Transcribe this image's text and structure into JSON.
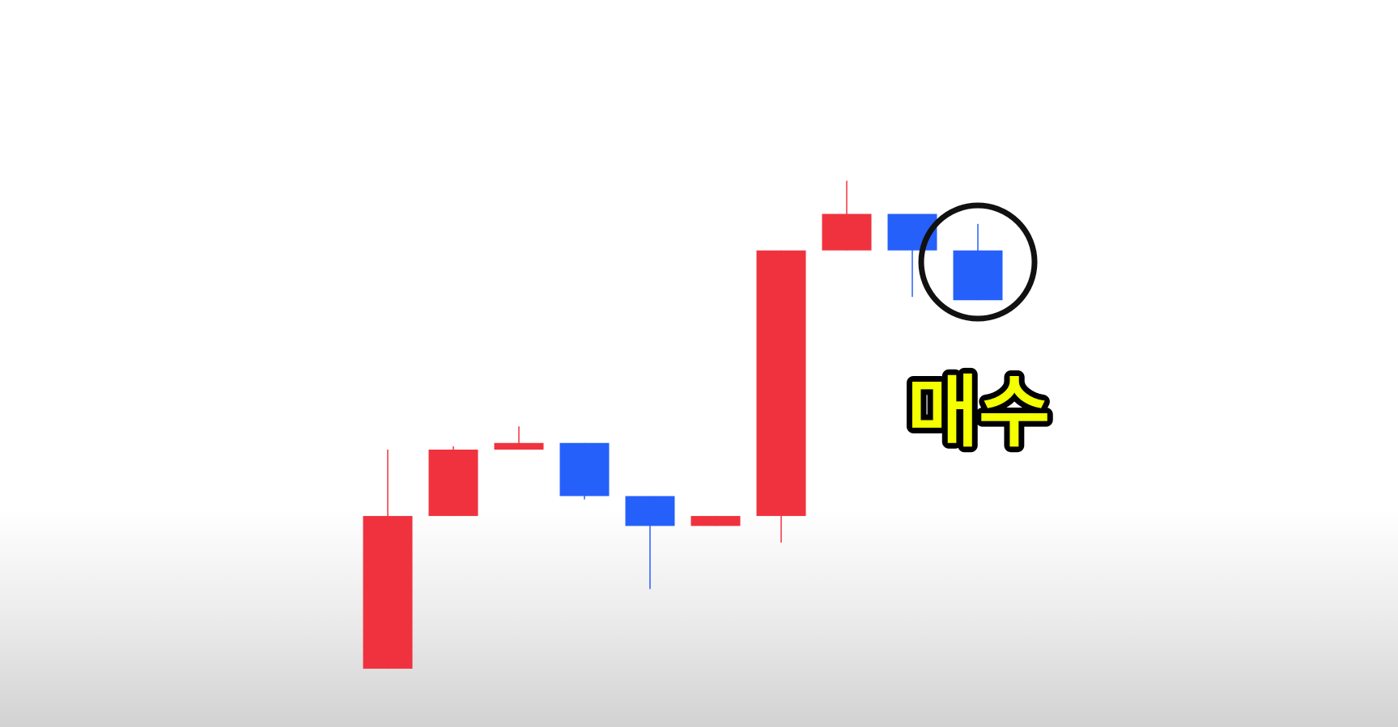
{
  "chart_data": {
    "type": "candlestick",
    "title": "",
    "xlabel": "",
    "ylabel": "",
    "axes_visible": false,
    "grid": false,
    "ylim": [
      0,
      100
    ],
    "candles": [
      {
        "open": 10,
        "high": 43,
        "low": 10,
        "close": 33
      },
      {
        "open": 33,
        "high": 43.5,
        "low": 33,
        "close": 43
      },
      {
        "open": 43,
        "high": 46.5,
        "low": 43,
        "close": 44
      },
      {
        "open": 44,
        "high": 44,
        "low": 35.5,
        "close": 36
      },
      {
        "open": 36,
        "high": 36,
        "low": 22,
        "close": 31.5
      },
      {
        "open": 31.5,
        "high": 33,
        "low": 31.5,
        "close": 33
      },
      {
        "open": 33,
        "high": 73,
        "low": 29,
        "close": 73
      },
      {
        "open": 73,
        "high": 83.5,
        "low": 73,
        "close": 78.5
      },
      {
        "open": 78.5,
        "high": 78.5,
        "low": 66,
        "close": 73
      },
      {
        "open": 73,
        "high": 77,
        "low": 65.5,
        "close": 65.5
      }
    ],
    "annotations": [
      {
        "type": "circle",
        "target_index": 9,
        "label": "매수"
      }
    ],
    "colors": {
      "up": "#f0323f",
      "down": "#2660fa",
      "circle": "#111111",
      "label_fill": "#f4ff00",
      "label_stroke": "#000000"
    }
  }
}
